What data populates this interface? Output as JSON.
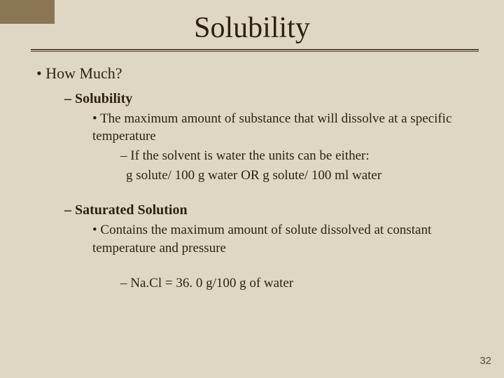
{
  "colors": {
    "background": "#dfd7c4",
    "corner_accent": "#8a7555",
    "text": "#2e1f12",
    "rule": "#5a4a35",
    "page_num": "#5a4a35"
  },
  "typography": {
    "font_family": "Comic Sans MS",
    "title_fontsize": 42,
    "lvl1_fontsize": 22,
    "lvl2_fontsize": 20,
    "body_fontsize": 19
  },
  "title": "Solubility",
  "page_number": "32",
  "bullets": {
    "lvl1_1": "How Much?",
    "lvl2_1": "Solubility",
    "lvl3_1": "The maximum amount of substance that will dissolve at a specific temperature",
    "lvl4_1": "If the solvent is water the units can be either:",
    "lvl4_1b": "g solute/ 100 g water  OR  g solute/ 100 ml water",
    "lvl2_2": "Saturated Solution",
    "lvl3_2": "Contains the maximum amount of solute dissolved at constant temperature and pressure",
    "lvl4_2": "Na.Cl = 36. 0 g/100 g of water"
  }
}
